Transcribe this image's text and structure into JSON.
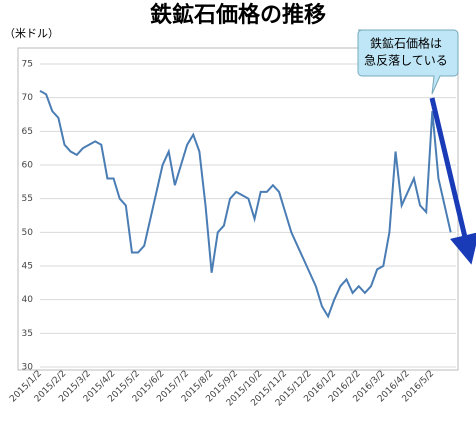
{
  "chart_data": {
    "type": "line",
    "title": "鉄鉱石価格の推移",
    "y_unit": "（米ドル）",
    "annotation": [
      "鉄鉱石価格は",
      "急反落している"
    ],
    "categories": [
      "2015/1/2",
      null,
      null,
      null,
      "2015/2/2",
      null,
      null,
      null,
      "2015/3/2",
      null,
      null,
      null,
      "2015/4/2",
      null,
      null,
      null,
      "2015/5/2",
      null,
      null,
      null,
      "2015/6/2",
      null,
      null,
      null,
      "2015/7/2",
      null,
      null,
      null,
      "2015/8/2",
      null,
      null,
      null,
      "2015/9/2",
      null,
      null,
      null,
      "2015/10/2",
      null,
      null,
      null,
      "2015/11/2",
      null,
      null,
      null,
      "2015/12/2",
      null,
      null,
      null,
      "2016/1/2",
      null,
      null,
      null,
      "2016/2/2",
      null,
      null,
      null,
      "2016/3/2",
      null,
      null,
      null,
      "2016/4/2",
      null,
      null,
      null,
      "2016/5/2",
      null,
      null,
      null
    ],
    "values": [
      71,
      70.5,
      68,
      67,
      63,
      62,
      61.5,
      62.5,
      63,
      63.5,
      63,
      58,
      58,
      55,
      54,
      47,
      47,
      48,
      52,
      56,
      60,
      62,
      57,
      60,
      63,
      64.5,
      62,
      54,
      44,
      50,
      51,
      55,
      56,
      55.5,
      55,
      52,
      56,
      56,
      57,
      56,
      53,
      50,
      48,
      46,
      44,
      42,
      39,
      37.5,
      40,
      42,
      43,
      41,
      42,
      41,
      42,
      44.5,
      45,
      50,
      62,
      54,
      56,
      58,
      54,
      53,
      68,
      58,
      54,
      50
    ],
    "color": "#4a7db4",
    "ylim": [
      30,
      75
    ],
    "yticks": [
      30,
      35,
      40,
      45,
      50,
      55,
      60,
      65,
      70,
      75
    ],
    "grid": true
  }
}
